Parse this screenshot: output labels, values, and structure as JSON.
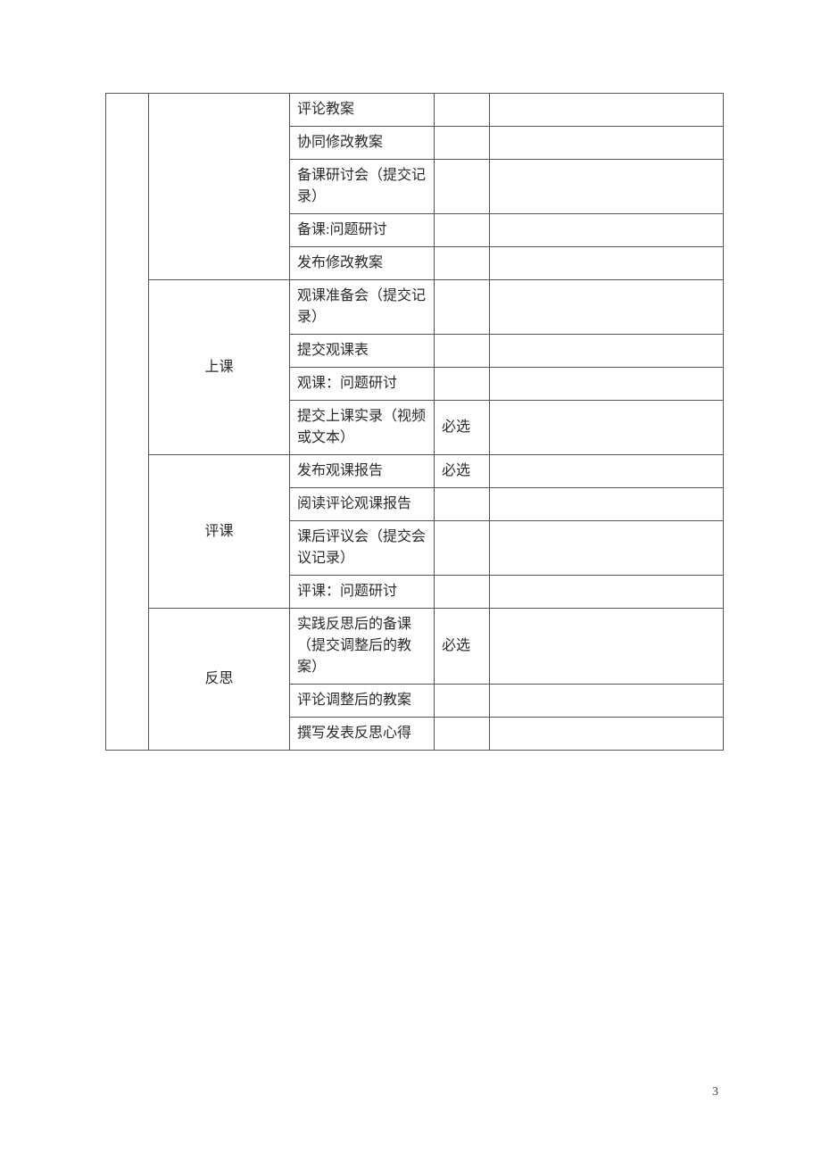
{
  "table": {
    "border_color": "#555555",
    "text_color": "#2a2a2a",
    "background_color": "#ffffff",
    "font_size": 16,
    "sections": [
      {
        "group_label": "",
        "rows": [
          {
            "activity": "评论教案",
            "required": "",
            "note": ""
          },
          {
            "activity": "协同修改教案",
            "required": "",
            "note": ""
          },
          {
            "activity": "备课研讨会（提交记录）",
            "required": "",
            "note": ""
          },
          {
            "activity": "备课:问题研讨",
            "required": "",
            "note": ""
          },
          {
            "activity": "发布修改教案",
            "required": "",
            "note": ""
          }
        ]
      },
      {
        "group_label": "上课",
        "rows": [
          {
            "activity": "观课准备会（提交记录）",
            "required": "",
            "note": ""
          },
          {
            "activity": "提交观课表",
            "required": "",
            "note": ""
          },
          {
            "activity": "观课：问题研讨",
            "required": "",
            "note": ""
          },
          {
            "activity": "提交上课实录（视频或文本）",
            "required": "必选",
            "note": ""
          }
        ]
      },
      {
        "group_label": "评课",
        "rows": [
          {
            "activity": "发布观课报告",
            "required": "必选",
            "note": ""
          },
          {
            "activity": "阅读评论观课报告",
            "required": "",
            "note": ""
          },
          {
            "activity": "课后评议会（提交会议记录）",
            "required": "",
            "note": ""
          },
          {
            "activity": "评课：问题研讨",
            "required": "",
            "note": ""
          }
        ]
      },
      {
        "group_label": "反思",
        "rows": [
          {
            "activity": "实践反思后的备课（提交调整后的教案）",
            "required": "必选",
            "note": ""
          },
          {
            "activity": "评论调整后的教案",
            "required": "",
            "note": ""
          },
          {
            "activity": "撰写发表反思心得",
            "required": "",
            "note": ""
          }
        ]
      }
    ]
  },
  "page_number": "3"
}
